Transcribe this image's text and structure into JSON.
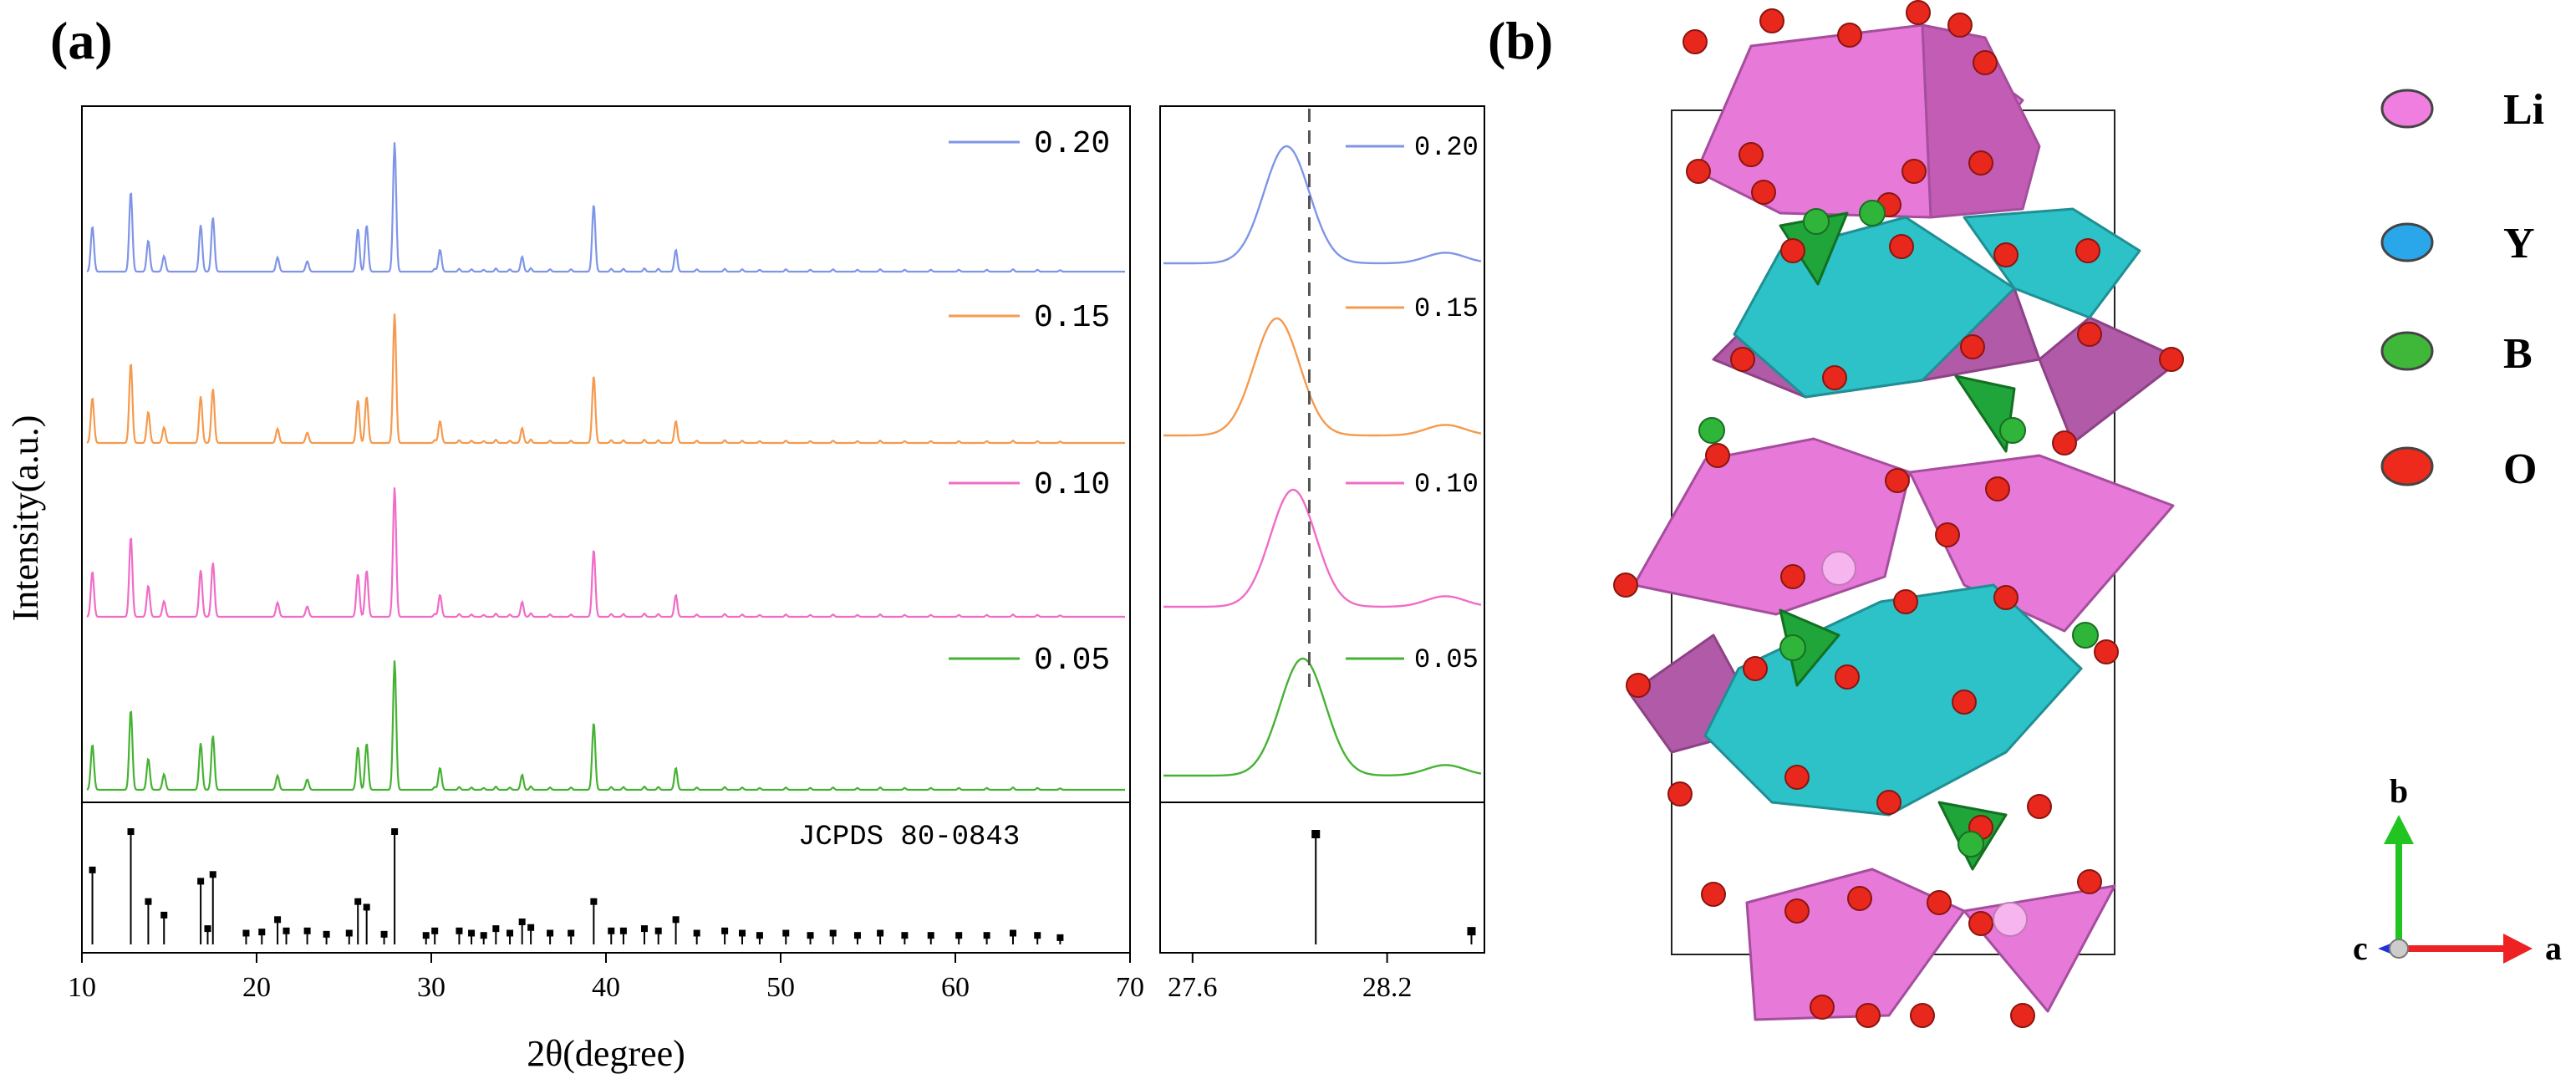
{
  "panels": {
    "a_label": "(a)",
    "b_label": "(b)"
  },
  "chart_data": [
    {
      "type": "line",
      "panel": "a",
      "title": "",
      "xlabel": "2θ(degree)",
      "ylabel": "Intensity(a.u.)",
      "xlim": [
        10,
        70
      ],
      "xticks": [
        "10",
        "20",
        "30",
        "40",
        "50",
        "60",
        "70"
      ],
      "peaks_deg": [
        10.6,
        12.8,
        13.8,
        14.7,
        16.8,
        17.5,
        21.2,
        22.9,
        25.8,
        26.3,
        27.9,
        30.5,
        35.2,
        39.3,
        44.0
      ],
      "peak_rel_intensity": [
        0.35,
        0.62,
        0.24,
        0.12,
        0.36,
        0.42,
        0.11,
        0.08,
        0.33,
        0.36,
        1.0,
        0.17,
        0.08,
        0.52,
        0.13
      ],
      "series": [
        {
          "name": "0.20",
          "color": "#7f95e6"
        },
        {
          "name": "0.15",
          "color": "#f59a4e"
        },
        {
          "name": "0.10",
          "color": "#f06cc8"
        },
        {
          "name": "0.05",
          "color": "#46b233"
        }
      ],
      "reference": {
        "label": "JCPDS 80-0843",
        "x": [
          10.6,
          12.8,
          13.8,
          14.7,
          16.8,
          17.2,
          17.5,
          19.4,
          20.3,
          21.2,
          21.7,
          22.9,
          24.0,
          25.3,
          25.8,
          26.3,
          27.3,
          27.9,
          29.7,
          30.2,
          31.6,
          32.3,
          33.0,
          33.7,
          34.5,
          35.2,
          35.7,
          36.8,
          38.0,
          39.3,
          40.3,
          41.0,
          42.2,
          43.0,
          44.0,
          45.2,
          46.8,
          47.8,
          48.8,
          50.3,
          51.7,
          53.0,
          54.4,
          55.7,
          57.1,
          58.6,
          60.2,
          61.8,
          63.3,
          64.7,
          66.0
        ],
        "y": [
          0.66,
          1.0,
          0.38,
          0.26,
          0.56,
          0.14,
          0.62,
          0.1,
          0.11,
          0.22,
          0.12,
          0.12,
          0.09,
          0.1,
          0.38,
          0.33,
          0.09,
          1.0,
          0.08,
          0.12,
          0.12,
          0.1,
          0.08,
          0.14,
          0.1,
          0.2,
          0.15,
          0.1,
          0.1,
          0.38,
          0.12,
          0.12,
          0.14,
          0.12,
          0.22,
          0.1,
          0.12,
          0.1,
          0.08,
          0.1,
          0.08,
          0.1,
          0.08,
          0.1,
          0.08,
          0.08,
          0.08,
          0.08,
          0.1,
          0.08,
          0.06
        ]
      }
    },
    {
      "type": "line",
      "panel": "a-inset",
      "title": "",
      "xlabel": "",
      "ylabel": "",
      "xlim": [
        27.5,
        28.5
      ],
      "xticks": [
        "27.6",
        "28.2"
      ],
      "peak_centers": [
        27.89,
        27.86,
        27.91,
        27.94
      ],
      "dashed_line_x": 27.96,
      "series": [
        {
          "name": "0.20",
          "color": "#7f95e6"
        },
        {
          "name": "0.15",
          "color": "#f59a4e"
        },
        {
          "name": "0.10",
          "color": "#f06cc8"
        },
        {
          "name": "0.05",
          "color": "#46b233"
        }
      ],
      "reference": {
        "x": [
          27.98,
          28.46
        ],
        "y": [
          1.0,
          0.12
        ]
      }
    }
  ],
  "structure": {
    "legend": [
      {
        "label": "Li",
        "color": "#f07ee0"
      },
      {
        "label": "Y",
        "color": "#2aa6ea"
      },
      {
        "label": "B",
        "color": "#3fb83a"
      },
      {
        "label": "O",
        "color": "#ee2a1c"
      }
    ],
    "axes": {
      "b": "b",
      "a": "a",
      "c": "c"
    },
    "colors": {
      "li_poly": "#e779d8",
      "li_poly_dark": "#a54e9d",
      "y_poly": "#2cc2c8",
      "b_poly": "#20a53a"
    }
  }
}
